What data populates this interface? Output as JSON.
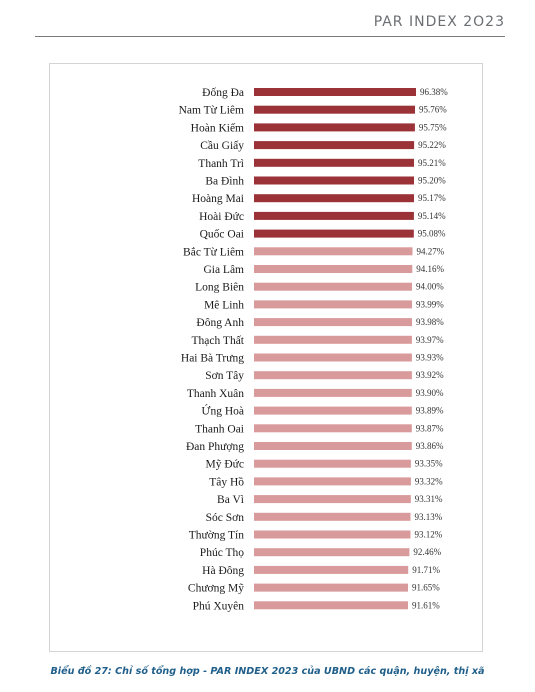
{
  "header": {
    "title": "PAR INDEX 2O23"
  },
  "caption": "Biểu đồ 27: Chỉ số tổng hợp - PAR INDEX 2023 của UBND các quận, huyện, thị xã",
  "colors": {
    "top_bar": "#9b3238",
    "other_bar": "#d99a9b",
    "caption": "#1f5f8a",
    "label": "#1a1a1a"
  },
  "chart_data": {
    "type": "bar",
    "orientation": "horizontal",
    "categories": [
      "Đống Đa",
      "Nam Từ Liêm",
      "Hoàn Kiếm",
      "Cầu Giấy",
      "Thanh Trì",
      "Ba Đình",
      "Hoàng Mai",
      "Hoài Đức",
      "Quốc Oai",
      "Bắc Từ Liêm",
      "Gia Lâm",
      "Long Biên",
      "Mê Linh",
      "Đông Anh",
      "Thạch Thất",
      "Hai Bà Trưng",
      "Sơn Tây",
      "Thanh Xuân",
      "Ứng Hoà",
      "Thanh Oai",
      "Đan Phượng",
      "Mỹ Đức",
      "Tây Hồ",
      "Ba Vì",
      "Sóc Sơn",
      "Thường Tín",
      "Phúc Thọ",
      "Hà Đông",
      "Chương Mỹ",
      "Phú Xuyên"
    ],
    "values": [
      96.38,
      95.76,
      95.75,
      95.22,
      95.21,
      95.2,
      95.17,
      95.14,
      95.08,
      94.27,
      94.16,
      94.0,
      93.99,
      93.98,
      93.97,
      93.93,
      93.92,
      93.9,
      93.89,
      93.87,
      93.86,
      93.35,
      93.32,
      93.31,
      93.13,
      93.12,
      92.46,
      91.71,
      91.65,
      91.61
    ],
    "value_labels": [
      "96.38%",
      "95.76%",
      "95.75%",
      "95.22%",
      "95.21%",
      "95.20%",
      "95.17%",
      "95.14%",
      "95.08%",
      "94.27%",
      "94.16%",
      "94.00%",
      "93.99%",
      "93.98%",
      "93.97%",
      "93.93%",
      "93.92%",
      "93.90%",
      "93.89%",
      "93.87%",
      "93.86%",
      "93.35%",
      "93.32%",
      "93.31%",
      "93.13%",
      "93.12%",
      "92.46%",
      "91.71%",
      "91.65%",
      "91.61%"
    ],
    "highlighted_top_count": 9,
    "axis_visible": false,
    "grid": false,
    "title": "",
    "xlabel": "",
    "ylabel": ""
  }
}
